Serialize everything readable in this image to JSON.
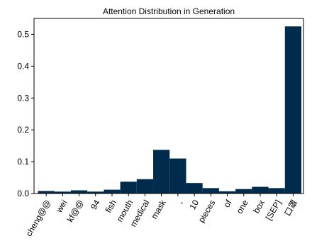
{
  "chart_data": {
    "type": "bar",
    "title": "Attention Distribution in Generation",
    "xlabel": "",
    "ylabel": "",
    "categories": [
      "cheng@@",
      "wei",
      "kf@@",
      "94",
      "fish",
      "mouth",
      "medical",
      "mask",
      ",",
      "10",
      "pieces",
      "of",
      "one",
      "box",
      "[SEP]",
      "口罩"
    ],
    "values": [
      0.008,
      0.006,
      0.01,
      0.006,
      0.012,
      0.037,
      0.045,
      0.137,
      0.11,
      0.033,
      0.017,
      0.007,
      0.014,
      0.021,
      0.017,
      0.525
    ],
    "ylim": [
      0,
      0.55
    ],
    "yticks": [
      0.0,
      0.1,
      0.2,
      0.3,
      0.4,
      0.5
    ],
    "ytick_labels": [
      "0.0",
      "0.1",
      "0.2",
      "0.3",
      "0.4",
      "0.5"
    ],
    "bar_color": "#002b4d",
    "grid": false
  }
}
